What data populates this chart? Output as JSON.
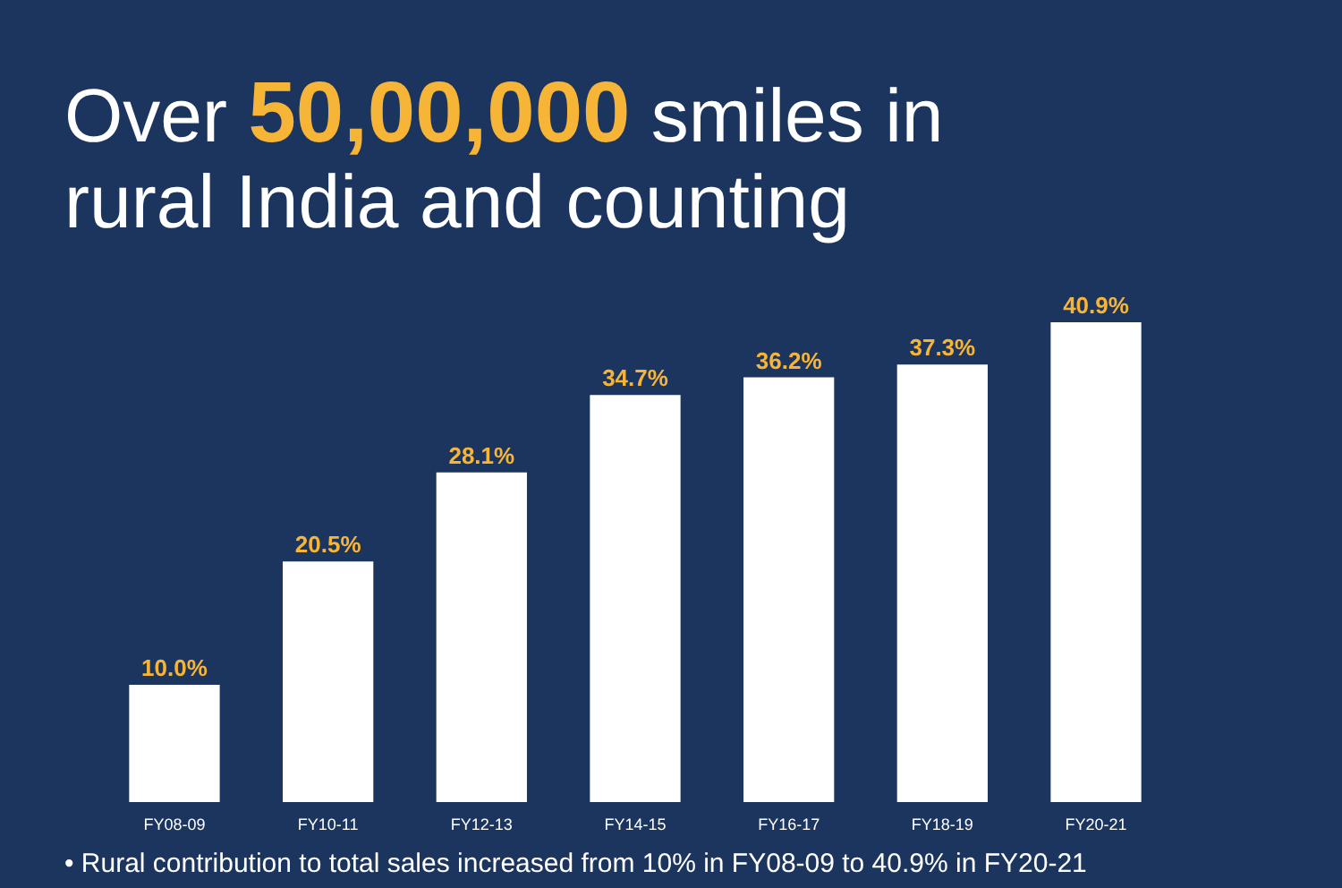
{
  "chart_data": {
    "type": "bar",
    "title": "Over 50,00,000 smiles in rural India and counting",
    "categories": [
      "FY08-09",
      "FY10-11",
      "FY12-13",
      "FY14-15",
      "FY16-17",
      "FY18-19",
      "FY20-21"
    ],
    "values": [
      10.0,
      20.5,
      28.1,
      34.7,
      36.2,
      37.3,
      40.9
    ],
    "value_labels": [
      "10.0%",
      "20.5%",
      "28.1%",
      "34.7%",
      "36.2%",
      "37.3%",
      "40.9%"
    ],
    "color": "#ffffff",
    "annotations": [
      "• Rural contribution to total sales increased from 10% in FY08-09 to 40.9% in FY20-21"
    ]
  }
}
